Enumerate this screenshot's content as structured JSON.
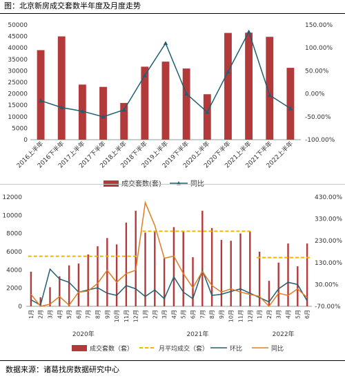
{
  "title": "图：北京新房成交套数半年度及月度走势",
  "footer": "数据来源：诸葛找房数据研究中心",
  "colors": {
    "bar": "#b23a3a",
    "line1": "#1f5f73",
    "avg": "#f1b400",
    "yoy": "#e07b20"
  },
  "chart_data": [
    {
      "type": "bar",
      "categories": [
        "2016上半年",
        "2016下半年",
        "2017上半年",
        "2017下半年",
        "2018上半年",
        "2018下半年",
        "2019上半年",
        "2019下半年",
        "2020上半年",
        "2020下半年",
        "2021上半年",
        "2021下半年",
        "2022上半年"
      ],
      "series": [
        {
          "name": "成交套数(套)",
          "type": "bar",
          "axis": "left",
          "values": [
            39000,
            45000,
            24000,
            23000,
            16000,
            31800,
            34000,
            31000,
            19800,
            46500,
            46600,
            44800,
            31300
          ]
        },
        {
          "name": "同比",
          "type": "line",
          "axis": "right",
          "unit": "%",
          "values": [
            -15,
            -30,
            -38,
            -50,
            -35,
            40,
            110,
            0,
            -40,
            48,
            135,
            -3,
            -32
          ]
        }
      ],
      "ylim": [
        0,
        50000
      ],
      "yticks": [
        "0",
        "5000",
        "10000",
        "15000",
        "20000",
        "25000",
        "30000",
        "35000",
        "40000",
        "45000",
        "50000"
      ],
      "y2lim": [
        -100,
        150
      ],
      "y2ticks": [
        "-100.00%",
        "-50.00%",
        "0.00%",
        "50.00%",
        "100.00%",
        "150.00%"
      ],
      "legend_position": "bottom"
    },
    {
      "type": "bar",
      "categories": [
        "1月",
        "2月",
        "3月",
        "4月",
        "5月",
        "6月",
        "7月",
        "8月",
        "9月",
        "10月",
        "11月",
        "12月",
        "1月",
        "2月",
        "3月",
        "4月",
        "5月",
        "6月",
        "7月",
        "8月",
        "9月",
        "10月",
        "11月",
        "12月",
        "1月",
        "2月",
        "3月",
        "4月",
        "5月",
        "6月"
      ],
      "year_labels": [
        "2020年",
        "2021年",
        "2022年"
      ],
      "series": [
        {
          "name": "成交套数（套）",
          "type": "bar",
          "axis": "left",
          "values": [
            3800,
            1000,
            2100,
            3300,
            4500,
            4700,
            5700,
            6600,
            7500,
            6800,
            9200,
            10500,
            8100,
            8300,
            5300,
            8700,
            8300,
            5400,
            10500,
            8600,
            7300,
            7200,
            8000,
            8200,
            6000,
            2800,
            4800,
            6900,
            4400,
            6900
          ]
        },
        {
          "name": "月平均成交（套）",
          "type": "dashed",
          "axis": "left",
          "segments": [
            {
              "from": 0,
              "to": 11,
              "value": 5500
            },
            {
              "from": 12,
              "to": 23,
              "value": 8250
            },
            {
              "from": 24,
              "to": 29,
              "value": 5350
            }
          ]
        },
        {
          "name": "环比",
          "type": "line",
          "axis": "right",
          "unit": "%",
          "values": [
            -40,
            -65,
            100,
            55,
            40,
            -5,
            5,
            15,
            -10,
            -20,
            25,
            10,
            -25,
            5,
            -35,
            65,
            -5,
            -35,
            95,
            -20,
            -15,
            -2,
            10,
            -10,
            -30,
            -50,
            10,
            40,
            30,
            -45
          ]
        },
        {
          "name": "同比",
          "type": "line",
          "axis": "right",
          "unit": "%",
          "values": [
            -15,
            -70,
            -60,
            -25,
            -65,
            -5,
            0,
            35,
            95,
            40,
            80,
            95,
            405,
            300,
            150,
            160,
            80,
            15,
            90,
            25,
            -5,
            10,
            -5,
            -15,
            -25,
            -70,
            -10,
            -20,
            10,
            -30
          ]
        }
      ],
      "ylim": [
        0,
        12000
      ],
      "yticks": [
        "0",
        "2000",
        "4000",
        "6000",
        "8000",
        "10000",
        "12000"
      ],
      "y2lim": [
        -70,
        430
      ],
      "y2ticks": [
        "-70.00%",
        "30.00%",
        "130.00%",
        "230.00%",
        "330.00%",
        "430.00%"
      ],
      "legend_position": "bottom"
    }
  ]
}
